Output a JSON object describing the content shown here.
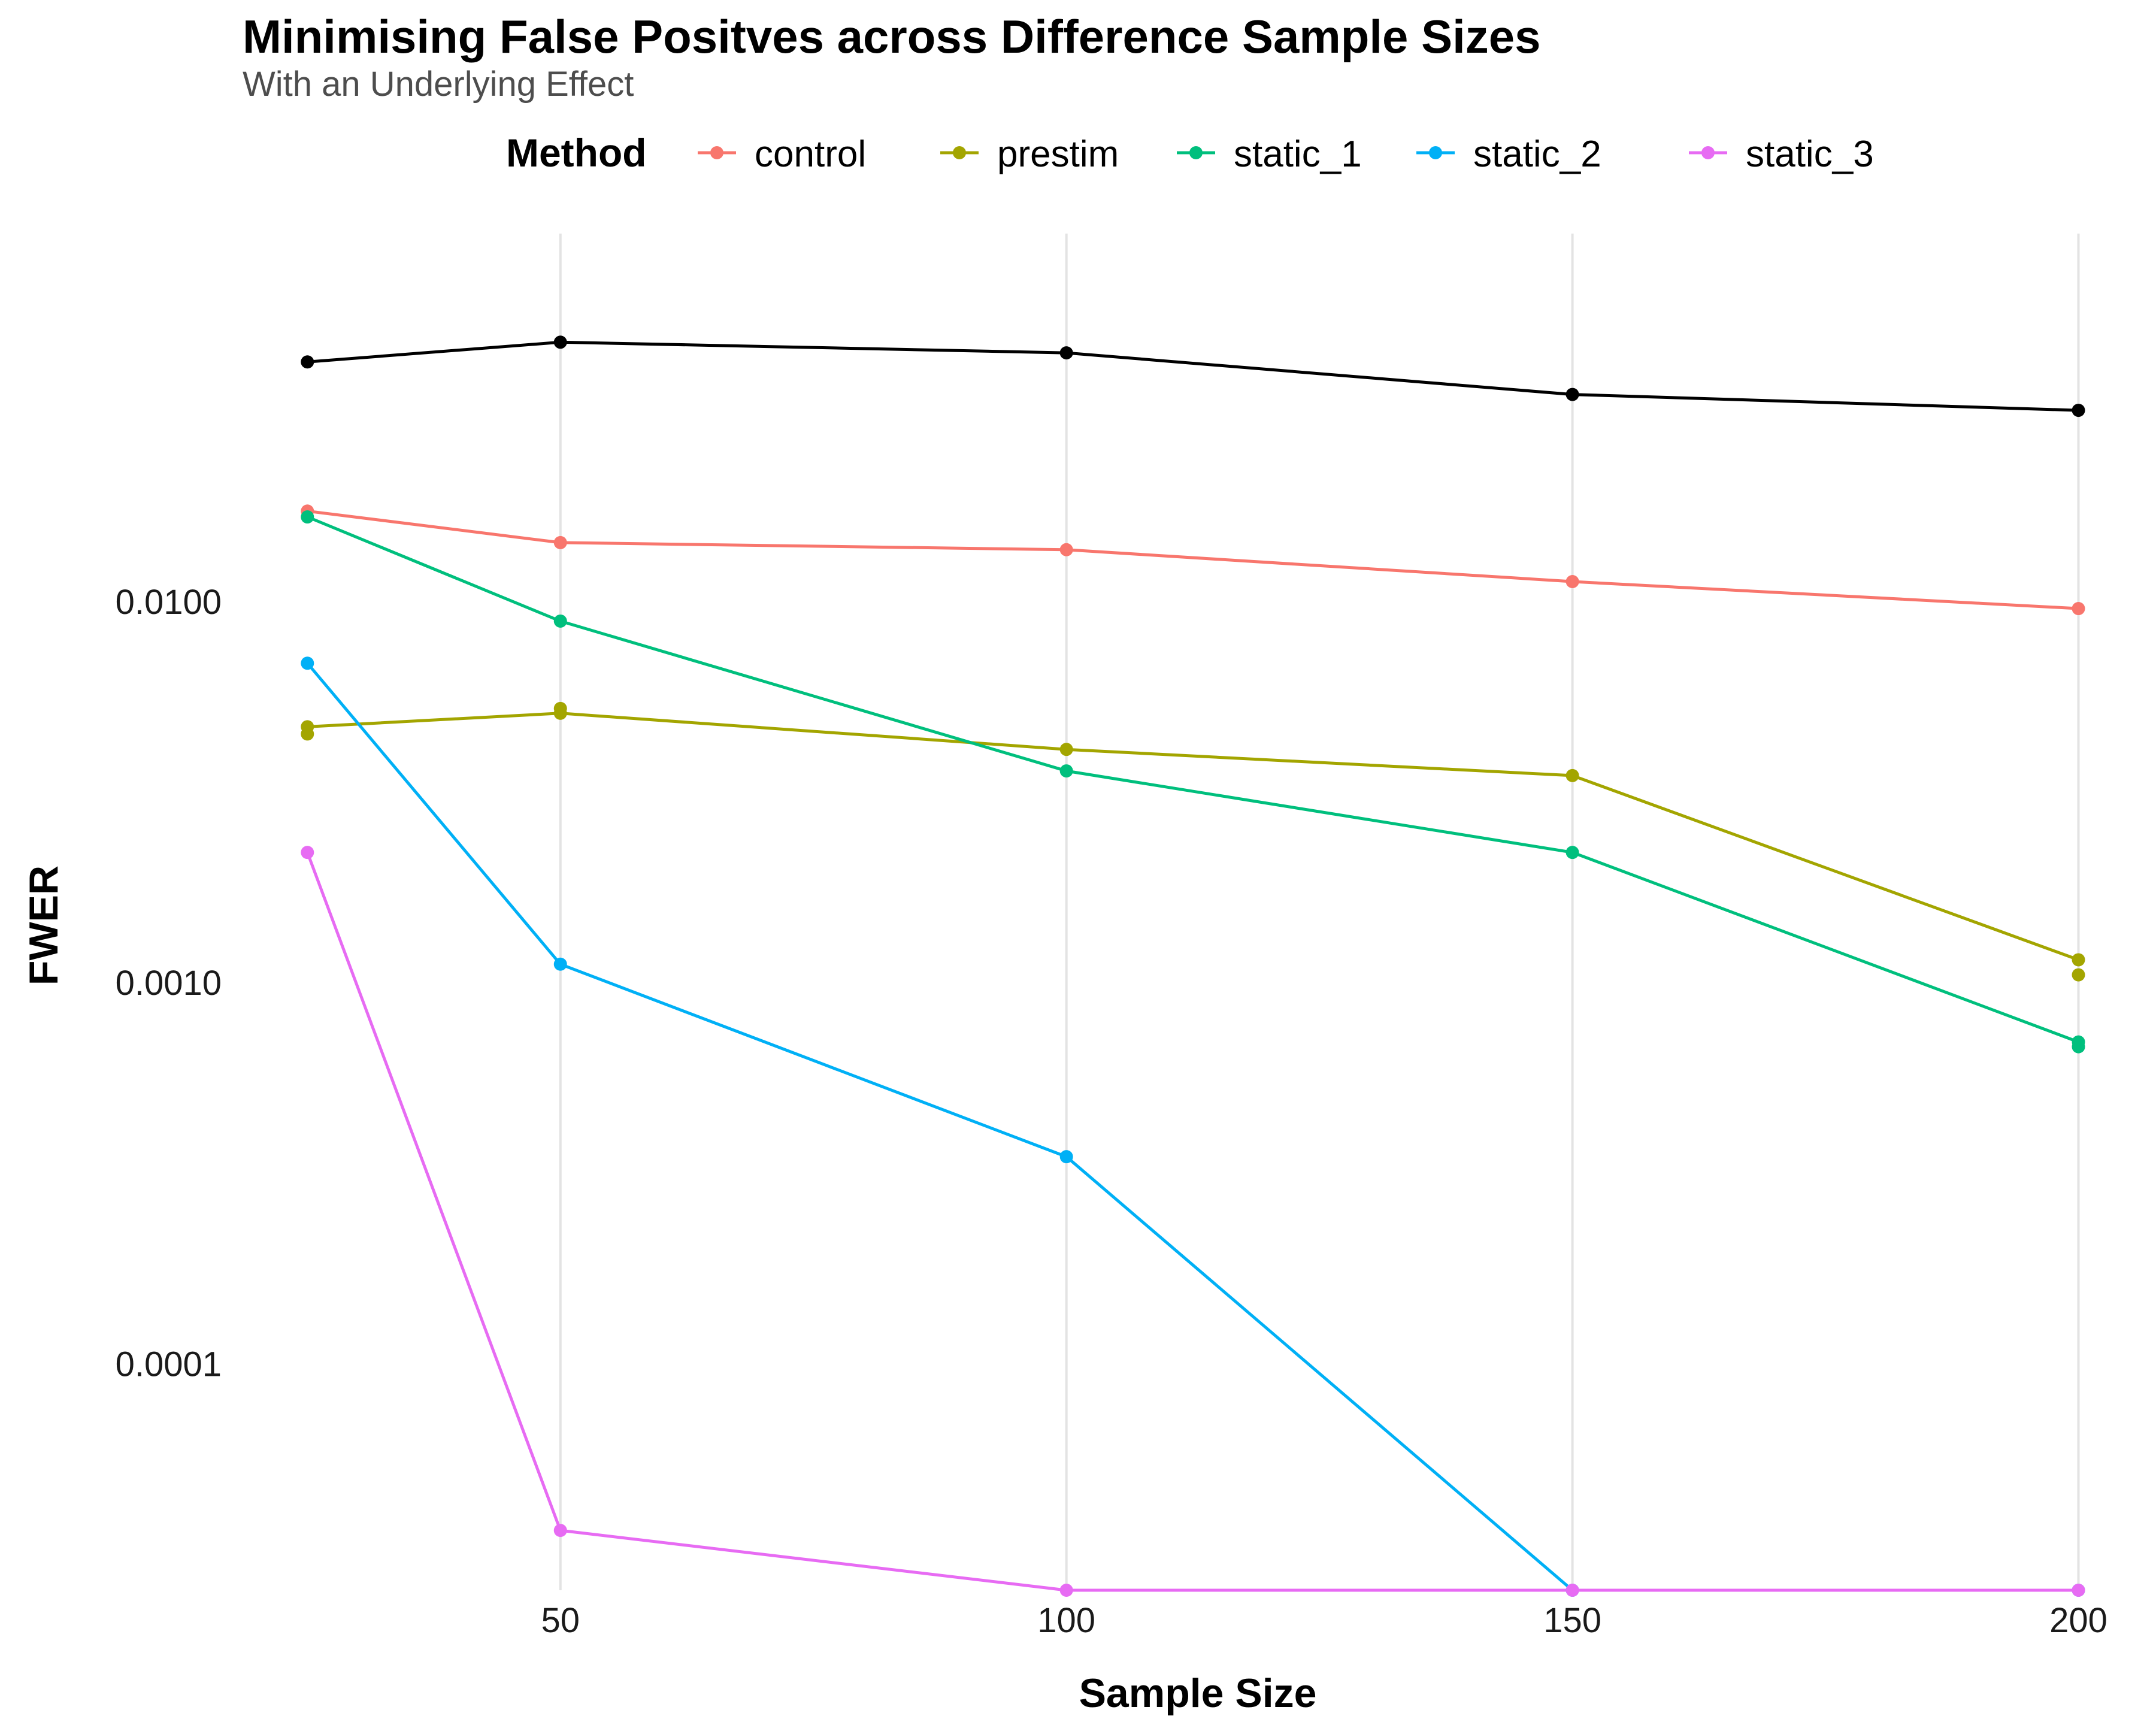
{
  "chart_data": {
    "type": "line",
    "title": "Minimising False Positves across Difference Sample Sizes",
    "subtitle": "With an Underlying Effect",
    "xlabel": "Sample Size",
    "ylabel": "FWER",
    "y_scale": "log10",
    "x_ticks": [
      "50",
      "100",
      "150",
      "200"
    ],
    "x_tick_values": [
      50,
      100,
      150,
      200
    ],
    "y_ticks": [
      "0.0001",
      "0.0010",
      "0.0100"
    ],
    "y_tick_values": [
      0.0001,
      0.001,
      0.01
    ],
    "xlim": [
      18,
      205
    ],
    "ylim": [
      2.55e-05,
      0.0925
    ],
    "grid": "vertical major gridlines",
    "legend_title": "Method",
    "legend_position": "top",
    "x": [
      25,
      50,
      100,
      150,
      200
    ],
    "series": [
      {
        "name": "",
        "color": "#000000",
        "values": [
          0.0426,
          0.048,
          0.045,
          0.035,
          0.0318
        ],
        "in_legend": false
      },
      {
        "name": "control",
        "color": "#F8766D",
        "values": [
          0.0173,
          0.0143,
          0.0137,
          0.0113,
          0.0096
        ],
        "in_legend": true
      },
      {
        "name": "prestim",
        "color": "#A3A500",
        "values": [
          0.0047,
          0.0051,
          0.0041,
          0.0035,
          0.00115
        ],
        "in_legend": true
      },
      {
        "name": "static_1",
        "color": "#00BF7D",
        "values": [
          0.0167,
          0.0089,
          0.0036,
          0.0022,
          0.0007
        ],
        "in_legend": true
      },
      {
        "name": "static_2",
        "color": "#00B0F6",
        "values": [
          0.0069,
          0.00112,
          0.00035,
          2.55e-05,
          2.55e-05
        ],
        "in_legend": true
      },
      {
        "name": "static_3",
        "color": "#E76BF3",
        "values": [
          0.0022,
          3.66e-05,
          2.55e-05,
          2.55e-05,
          2.55e-05
        ],
        "in_legend": true
      }
    ],
    "extra_points": [
      {
        "series": "prestim",
        "x": 25,
        "y": 0.0045
      },
      {
        "series": "prestim",
        "x": 50,
        "y": 0.00525
      },
      {
        "series": "prestim",
        "x": 200,
        "y": 0.00105
      },
      {
        "series": "static_1",
        "x": 200,
        "y": 0.00068
      }
    ]
  }
}
